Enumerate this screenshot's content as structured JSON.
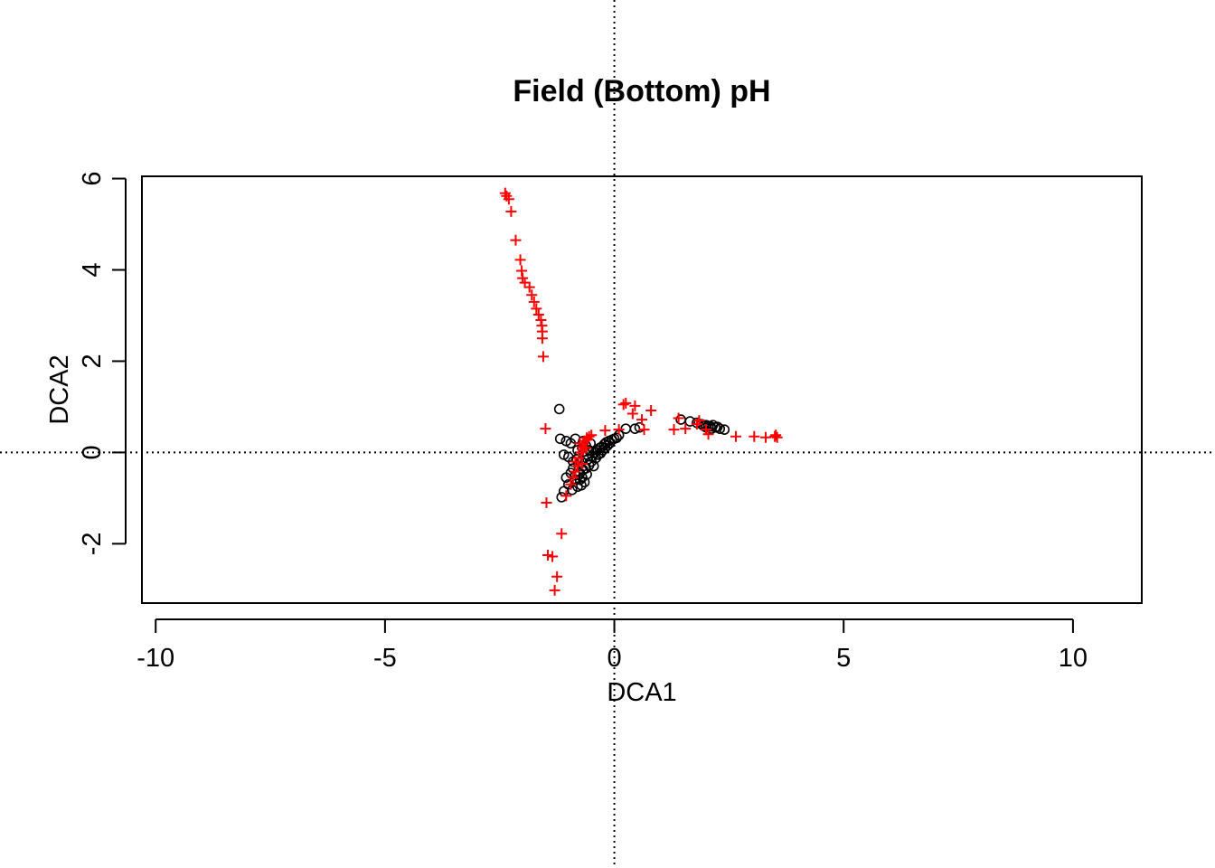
{
  "chart_data": {
    "type": "scatter",
    "title": "Field (Bottom) pH",
    "xlabel": "DCA1",
    "ylabel": "DCA2",
    "xlim": [
      -10.3,
      11.5
    ],
    "ylim": [
      -3.3,
      6.05
    ],
    "xticks": [
      -10,
      -5,
      0,
      5,
      10
    ],
    "xtick_labels": [
      "-10",
      "-5",
      "0",
      "5",
      "10"
    ],
    "yticks": [
      -2,
      0,
      2,
      4,
      6
    ],
    "ytick_labels": [
      "-2",
      "0",
      "2",
      "4",
      "6"
    ],
    "reference_lines": {
      "x": 0,
      "y": 0,
      "style": "dotted"
    },
    "grid": false,
    "series": [
      {
        "marker": "open-circle",
        "color": "#000000",
        "points": [
          [
            -1.2,
            0.95
          ],
          [
            -1.18,
            0.3
          ],
          [
            -1.05,
            0.25
          ],
          [
            -0.95,
            0.2
          ],
          [
            -0.85,
            0.3
          ],
          [
            -1.1,
            -0.05
          ],
          [
            -1.0,
            -0.1
          ],
          [
            -0.9,
            -0.2
          ],
          [
            -0.95,
            -0.45
          ],
          [
            -1.05,
            -0.55
          ],
          [
            -1.0,
            -0.7
          ],
          [
            -1.1,
            -0.85
          ],
          [
            -1.15,
            -0.98
          ],
          [
            -0.85,
            -0.6
          ],
          [
            -0.8,
            -0.75
          ],
          [
            -0.9,
            -0.35
          ],
          [
            -0.85,
            -0.5
          ],
          [
            -0.75,
            -0.45
          ],
          [
            -0.7,
            -0.55
          ],
          [
            -0.78,
            -0.3
          ],
          [
            -0.72,
            -0.2
          ],
          [
            -0.68,
            -0.38
          ],
          [
            -0.62,
            -0.35
          ],
          [
            -0.6,
            -0.48
          ],
          [
            -0.55,
            -0.28
          ],
          [
            -0.58,
            -0.15
          ],
          [
            -0.5,
            -0.2
          ],
          [
            -0.48,
            -0.08
          ],
          [
            -0.45,
            -0.3
          ],
          [
            -0.42,
            0.0
          ],
          [
            -0.4,
            -0.12
          ],
          [
            -0.38,
            0.05
          ],
          [
            -0.35,
            -0.05
          ],
          [
            -0.32,
            0.1
          ],
          [
            -0.3,
            -0.02
          ],
          [
            -0.28,
            0.12
          ],
          [
            -0.25,
            0.05
          ],
          [
            -0.22,
            0.18
          ],
          [
            -0.2,
            0.1
          ],
          [
            -0.18,
            0.22
          ],
          [
            -0.15,
            0.15
          ],
          [
            -0.12,
            0.25
          ],
          [
            -0.1,
            0.2
          ],
          [
            -0.05,
            0.28
          ],
          [
            0.0,
            0.3
          ],
          [
            0.05,
            0.32
          ],
          [
            0.1,
            0.38
          ],
          [
            -0.65,
            0.02
          ],
          [
            -0.7,
            0.1
          ],
          [
            -0.62,
            0.15
          ],
          [
            -0.55,
            0.05
          ],
          [
            -0.52,
            0.2
          ],
          [
            -0.8,
            0.05
          ],
          [
            -0.65,
            -0.65
          ],
          [
            -0.75,
            -0.6
          ],
          [
            -0.82,
            -0.15
          ],
          [
            -0.6,
            -0.05
          ],
          [
            -0.68,
            0.25
          ],
          [
            -0.72,
            -0.72
          ],
          [
            -0.92,
            -0.82
          ],
          [
            0.25,
            0.52
          ],
          [
            0.45,
            0.52
          ],
          [
            0.55,
            0.55
          ],
          [
            1.45,
            0.72
          ],
          [
            1.65,
            0.68
          ],
          [
            1.8,
            0.65
          ],
          [
            1.9,
            0.62
          ],
          [
            2.0,
            0.6
          ],
          [
            2.05,
            0.58
          ],
          [
            2.1,
            0.57
          ],
          [
            2.15,
            0.6
          ],
          [
            2.2,
            0.55
          ],
          [
            2.25,
            0.56
          ],
          [
            2.3,
            0.52
          ],
          [
            2.4,
            0.5
          ],
          [
            2.0,
            0.55
          ],
          [
            1.95,
            0.58
          ],
          [
            2.12,
            0.52
          ]
        ]
      },
      {
        "marker": "plus",
        "color": "#ff0000",
        "points": [
          [
            -2.38,
            5.68
          ],
          [
            -2.35,
            5.62
          ],
          [
            -2.3,
            5.55
          ],
          [
            -2.25,
            5.28
          ],
          [
            -2.15,
            4.65
          ],
          [
            -2.05,
            4.22
          ],
          [
            -2.02,
            3.98
          ],
          [
            -2.0,
            3.82
          ],
          [
            -1.95,
            3.72
          ],
          [
            -1.85,
            3.62
          ],
          [
            -1.8,
            3.45
          ],
          [
            -1.75,
            3.3
          ],
          [
            -1.7,
            3.15
          ],
          [
            -1.65,
            3.02
          ],
          [
            -1.6,
            2.9
          ],
          [
            -1.58,
            2.78
          ],
          [
            -1.57,
            2.65
          ],
          [
            -1.57,
            2.5
          ],
          [
            -1.55,
            2.1
          ],
          [
            -1.5,
            0.52
          ],
          [
            -1.48,
            -1.1
          ],
          [
            -1.45,
            -2.25
          ],
          [
            -1.35,
            -2.28
          ],
          [
            -1.25,
            -2.72
          ],
          [
            -1.3,
            -3.02
          ],
          [
            -1.15,
            -1.78
          ],
          [
            -1.05,
            -0.95
          ],
          [
            -0.95,
            -0.7
          ],
          [
            -0.9,
            -0.55
          ],
          [
            -0.85,
            -0.42
          ],
          [
            -0.8,
            -0.3
          ],
          [
            -0.85,
            -0.2
          ],
          [
            -0.78,
            -0.12
          ],
          [
            -0.72,
            0.0
          ],
          [
            -0.7,
            0.12
          ],
          [
            -0.65,
            0.25
          ],
          [
            -0.6,
            0.32
          ],
          [
            -0.55,
            0.35
          ],
          [
            -0.5,
            0.38
          ],
          [
            -0.75,
            0.2
          ],
          [
            -0.7,
            -0.25
          ],
          [
            -0.68,
            0.05
          ],
          [
            -0.62,
            0.1
          ],
          [
            -0.58,
            0.28
          ],
          [
            -0.2,
            0.48
          ],
          [
            0.1,
            0.5
          ],
          [
            0.2,
            1.05
          ],
          [
            0.25,
            1.08
          ],
          [
            0.45,
            1.02
          ],
          [
            0.4,
            0.85
          ],
          [
            0.6,
            0.72
          ],
          [
            0.8,
            0.92
          ],
          [
            0.65,
            0.5
          ],
          [
            1.3,
            0.5
          ],
          [
            1.4,
            0.75
          ],
          [
            1.55,
            0.52
          ],
          [
            1.8,
            0.62
          ],
          [
            1.85,
            0.7
          ],
          [
            2.0,
            0.5
          ],
          [
            2.05,
            0.4
          ],
          [
            2.65,
            0.35
          ],
          [
            3.05,
            0.35
          ],
          [
            3.3,
            0.33
          ],
          [
            3.5,
            0.35
          ],
          [
            3.52,
            0.38
          ],
          [
            3.55,
            0.33
          ]
        ]
      }
    ]
  }
}
